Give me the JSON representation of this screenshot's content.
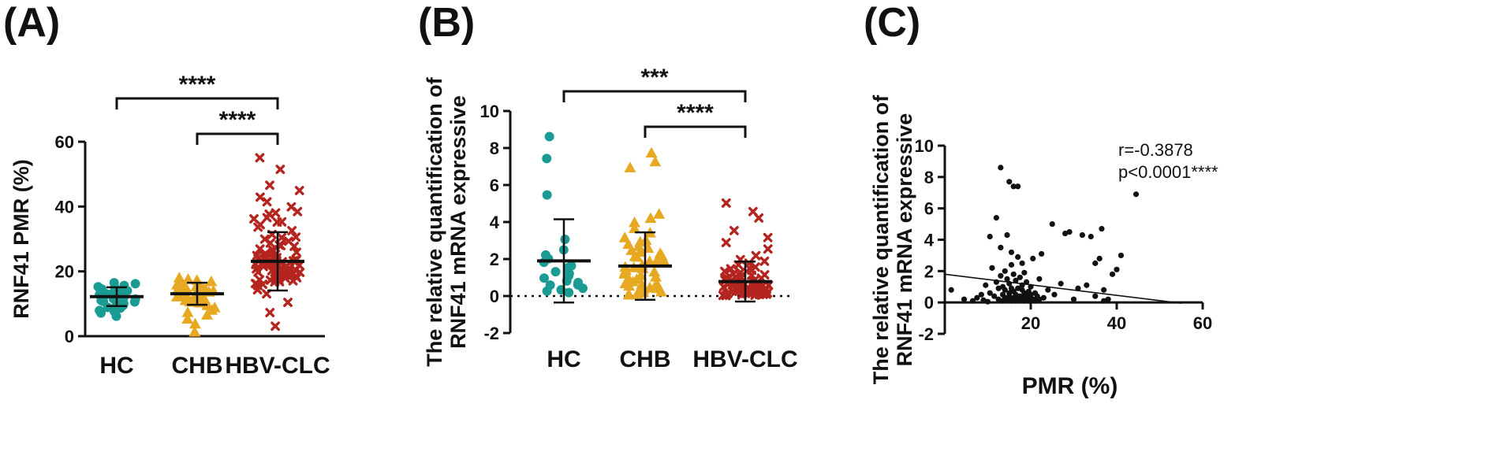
{
  "colors": {
    "HC": "#1a9c94",
    "CHB": "#e8a922",
    "HBV-CLC": "#b5251f",
    "ink": "#111111"
  },
  "chart_data": [
    {
      "panel": "(A)",
      "type": "scatter",
      "title": "",
      "xlabel": "",
      "ylabel": "RNF41 PMR (%)",
      "ylim": [
        0,
        60
      ],
      "yticks": [
        0,
        20,
        40,
        60
      ],
      "zero_line": false,
      "categories": [
        "HC",
        "CHB",
        "HBV-CLC"
      ],
      "series": [
        {
          "name": "HC",
          "marker": "circle",
          "mean": 12.2,
          "sd": 2.9,
          "values": [
            6.2,
            7.0,
            7.6,
            8.1,
            8.6,
            9.0,
            9.3,
            9.6,
            9.9,
            10.2,
            10.5,
            10.8,
            11.0,
            11.3,
            11.6,
            11.8,
            12.0,
            12.2,
            12.4,
            12.6,
            12.8,
            13.0,
            13.3,
            13.5,
            13.8,
            14.1,
            14.4,
            14.8,
            15.2,
            15.7,
            16.1,
            16.5
          ]
        },
        {
          "name": "CHB",
          "marker": "triangle",
          "mean": 13.1,
          "sd": 3.4,
          "values": [
            1.5,
            3.8,
            5.2,
            6.4,
            7.5,
            8.3,
            9.0,
            9.6,
            10.1,
            10.6,
            11.0,
            11.4,
            11.8,
            12.1,
            12.4,
            12.7,
            13.0,
            13.3,
            13.6,
            13.9,
            14.2,
            14.5,
            14.8,
            15.1,
            15.5,
            15.9,
            16.3,
            16.7,
            17.1,
            17.6,
            18.0,
            12.5,
            13.5,
            14.0,
            11.2,
            10.4,
            15.3,
            16.0
          ]
        },
        {
          "name": "HBV-CLC",
          "marker": "x",
          "mean": 23.1,
          "sd": 9.0,
          "values": [
            3.2,
            7.5,
            10.5,
            13.0,
            14.5,
            15.4,
            15.9,
            16.3,
            16.7,
            17.0,
            17.3,
            17.6,
            17.9,
            18.1,
            18.3,
            18.5,
            18.7,
            18.9,
            19.1,
            19.3,
            19.5,
            19.7,
            19.9,
            20.1,
            20.3,
            20.5,
            20.7,
            20.9,
            21.1,
            21.3,
            21.5,
            21.7,
            21.9,
            22.1,
            22.3,
            22.5,
            22.7,
            22.9,
            23.1,
            23.3,
            23.5,
            23.8,
            24.1,
            24.4,
            24.7,
            25.0,
            25.3,
            25.7,
            26.1,
            26.5,
            27.0,
            27.5,
            28.0,
            28.6,
            29.3,
            30.0,
            30.8,
            31.6,
            32.5,
            33.5,
            34.5,
            35.5,
            36.5,
            37.5,
            38.5,
            40.0,
            41.5,
            43.0,
            45.0,
            46.5,
            51.5,
            55.0,
            17.2,
            18.0,
            18.8,
            19.6,
            20.4,
            21.2,
            22.0,
            22.8,
            23.6,
            24.5,
            16.1,
            17.5,
            19.0,
            20.2,
            21.8,
            23.2,
            25.5,
            27.8,
            30.5,
            35.0,
            36.2,
            37.8
          ]
        }
      ],
      "brackets": [
        {
          "from": "HC",
          "to": "HBV-CLC",
          "label": "****",
          "level": 1
        },
        {
          "from": "CHB",
          "to": "HBV-CLC",
          "label": "****",
          "level": 0
        }
      ]
    },
    {
      "panel": "(B)",
      "type": "scatter",
      "title": "",
      "xlabel": "",
      "ylabel": "The relative quantification of RNF41 mRNA expressive",
      "ylabel_lines": [
        "The relative quantification of",
        "RNF41 mRNA expressive"
      ],
      "ylim": [
        -2,
        10
      ],
      "yticks": [
        -2,
        0,
        2,
        4,
        6,
        8,
        10
      ],
      "zero_line": true,
      "categories": [
        "HC",
        "CHB",
        "HBV-CLC"
      ],
      "series": [
        {
          "name": "HC",
          "marker": "circle",
          "mean": 1.9,
          "sd": 2.25,
          "values": [
            0.15,
            0.25,
            0.35,
            0.45,
            0.55,
            0.65,
            0.75,
            0.85,
            0.95,
            1.05,
            1.2,
            1.35,
            1.5,
            1.65,
            1.8,
            2.0,
            2.2,
            2.5,
            3.1,
            5.45,
            7.4,
            8.6
          ]
        },
        {
          "name": "CHB",
          "marker": "triangle",
          "mean": 1.62,
          "sd": 1.82,
          "values": [
            0.05,
            0.1,
            0.15,
            0.2,
            0.25,
            0.3,
            0.35,
            0.4,
            0.45,
            0.5,
            0.55,
            0.6,
            0.7,
            0.8,
            0.9,
            1.0,
            1.1,
            1.2,
            1.3,
            1.4,
            1.5,
            1.6,
            1.7,
            1.8,
            1.9,
            2.0,
            2.1,
            2.2,
            2.3,
            2.4,
            2.5,
            2.6,
            2.7,
            2.8,
            2.9,
            3.0,
            3.2,
            3.4,
            3.7,
            4.0,
            4.2,
            4.4,
            6.9,
            7.3,
            7.7,
            0.65,
            0.95,
            1.25,
            1.55,
            1.85,
            2.15
          ]
        },
        {
          "name": "HBV-CLC",
          "marker": "x",
          "mean": 0.78,
          "sd": 1.08,
          "values": [
            0.02,
            0.04,
            0.06,
            0.08,
            0.1,
            0.12,
            0.14,
            0.16,
            0.18,
            0.2,
            0.22,
            0.24,
            0.26,
            0.28,
            0.3,
            0.32,
            0.34,
            0.36,
            0.38,
            0.4,
            0.42,
            0.44,
            0.46,
            0.48,
            0.5,
            0.52,
            0.55,
            0.58,
            0.61,
            0.64,
            0.67,
            0.7,
            0.73,
            0.76,
            0.8,
            0.84,
            0.88,
            0.92,
            0.96,
            1.0,
            1.05,
            1.1,
            1.15,
            1.2,
            1.3,
            1.4,
            1.5,
            1.6,
            1.7,
            1.8,
            1.9,
            2.0,
            2.2,
            2.5,
            2.9,
            3.2,
            3.5,
            4.2,
            4.6,
            5.0,
            0.05,
            0.15,
            0.25,
            0.35,
            0.45,
            0.55,
            0.65,
            0.75,
            0.85,
            0.95,
            0.1,
            0.3,
            0.5,
            0.7,
            0.9,
            1.25,
            1.45
          ]
        }
      ],
      "brackets": [
        {
          "from": "HC",
          "to": "HBV-CLC",
          "label": "***",
          "level": 1
        },
        {
          "from": "CHB",
          "to": "HBV-CLC",
          "label": "****",
          "level": 0
        }
      ]
    },
    {
      "panel": "(C)",
      "type": "scatter",
      "title": "",
      "xlabel": "PMR (%)",
      "ylabel": "The relative quantification of RNF41 mRNA expressive",
      "ylabel_lines": [
        "The relative quantification of",
        "RNF41 mRNA expressive"
      ],
      "xlim": [
        0,
        60
      ],
      "xticks": [
        20,
        40,
        60
      ],
      "ylim": [
        -2,
        10
      ],
      "yticks": [
        -2,
        0,
        2,
        4,
        6,
        8,
        10
      ],
      "annotation": [
        "r=-0.3878",
        "p<0.0001****"
      ],
      "regression": {
        "x": [
          0,
          55
        ],
        "y": [
          1.8,
          -0.05
        ]
      },
      "points": [
        [
          1.5,
          0.8
        ],
        [
          4.5,
          0.2
        ],
        [
          6.5,
          0.1
        ],
        [
          7.5,
          0.3
        ],
        [
          8.5,
          0.5
        ],
        [
          9,
          0.15
        ],
        [
          9.5,
          1.1
        ],
        [
          10,
          0.05
        ],
        [
          10.5,
          0.6
        ],
        [
          10.5,
          4.2
        ],
        [
          11,
          2.2
        ],
        [
          11.5,
          0.4
        ],
        [
          12,
          5.4
        ],
        [
          12,
          1.3
        ],
        [
          12.5,
          0.2
        ],
        [
          12.5,
          0.9
        ],
        [
          13,
          1.7
        ],
        [
          13,
          3.5
        ],
        [
          13,
          8.6
        ],
        [
          13.5,
          0.1
        ],
        [
          13.5,
          1.0
        ],
        [
          13.5,
          0.5
        ],
        [
          14,
          0.3
        ],
        [
          14,
          2.0
        ],
        [
          14,
          0.8
        ],
        [
          14.5,
          1.5
        ],
        [
          14.5,
          0.2
        ],
        [
          14.5,
          4.3
        ],
        [
          15,
          0.6
        ],
        [
          15,
          7.7
        ],
        [
          15,
          1.2
        ],
        [
          15,
          0.4
        ],
        [
          15.5,
          0.1
        ],
        [
          15.5,
          2.4
        ],
        [
          15.5,
          0.9
        ],
        [
          15.5,
          3.2
        ],
        [
          16,
          0.3
        ],
        [
          16,
          1.8
        ],
        [
          16,
          7.4
        ],
        [
          16,
          0.7
        ],
        [
          16.5,
          0.2
        ],
        [
          16.5,
          1.4
        ],
        [
          16.5,
          0.5
        ],
        [
          17,
          7.4
        ],
        [
          17,
          0.9
        ],
        [
          17,
          0.1
        ],
        [
          17,
          2.9
        ],
        [
          17.5,
          0.4
        ],
        [
          17.5,
          1.6
        ],
        [
          17.5,
          0.2
        ],
        [
          18,
          0.8
        ],
        [
          18,
          0.3
        ],
        [
          18,
          2.5
        ],
        [
          18,
          1.1
        ],
        [
          18.5,
          0.6
        ],
        [
          18.5,
          0.1
        ],
        [
          18.5,
          1.9
        ],
        [
          19,
          0.4
        ],
        [
          19,
          0.2
        ],
        [
          19,
          1.3
        ],
        [
          19.5,
          0.7
        ],
        [
          19.5,
          0.1
        ],
        [
          20,
          0.5
        ],
        [
          20,
          1.0
        ],
        [
          20,
          0.3
        ],
        [
          20.5,
          0.2
        ],
        [
          20.5,
          2.8
        ],
        [
          21,
          0.6
        ],
        [
          21,
          0.1
        ],
        [
          21.5,
          0.4
        ],
        [
          22,
          0.2
        ],
        [
          22,
          1.5
        ],
        [
          22.5,
          3.1
        ],
        [
          23,
          0.3
        ],
        [
          24,
          0.8
        ],
        [
          25,
          5.0
        ],
        [
          25.5,
          0.5
        ],
        [
          27,
          1.2
        ],
        [
          28,
          4.4
        ],
        [
          29,
          4.5
        ],
        [
          30,
          0.2
        ],
        [
          31,
          0.9
        ],
        [
          32,
          4.3
        ],
        [
          33,
          1.1
        ],
        [
          34,
          4.2
        ],
        [
          35,
          2.5
        ],
        [
          35,
          0.4
        ],
        [
          36,
          2.8
        ],
        [
          36.5,
          4.7
        ],
        [
          37,
          0.1
        ],
        [
          37,
          0.8
        ],
        [
          38,
          0.2
        ],
        [
          39,
          1.8
        ],
        [
          40,
          2.1
        ],
        [
          41,
          3.0
        ],
        [
          44.5,
          6.9
        ]
      ]
    }
  ]
}
